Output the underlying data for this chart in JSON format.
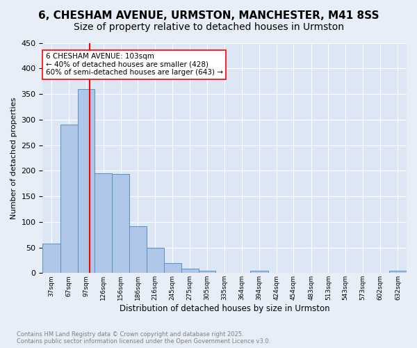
{
  "title1": "6, CHESHAM AVENUE, URMSTON, MANCHESTER, M41 8SS",
  "title2": "Size of property relative to detached houses in Urmston",
  "xlabel": "Distribution of detached houses by size in Urmston",
  "ylabel": "Number of detached properties",
  "bar_values": [
    57,
    290,
    360,
    195,
    193,
    92,
    49,
    20,
    9,
    4,
    0,
    0,
    4,
    0,
    0,
    0,
    0,
    0,
    0,
    0,
    4
  ],
  "bar_labels": [
    "37sqm",
    "67sqm",
    "97sqm",
    "126sqm",
    "156sqm",
    "186sqm",
    "216sqm",
    "245sqm",
    "275sqm",
    "305sqm",
    "335sqm",
    "364sqm",
    "394sqm",
    "424sqm",
    "454sqm",
    "483sqm",
    "513sqm",
    "543sqm",
    "573sqm",
    "602sqm",
    "632sqm"
  ],
  "bin_edges": [
    22,
    52,
    82,
    111,
    141,
    171,
    200,
    230,
    260,
    290,
    319,
    349,
    379,
    409,
    438,
    468,
    498,
    527,
    557,
    587,
    617,
    647
  ],
  "bar_color": "#aec6e8",
  "bar_edge_color": "#5a8fc0",
  "vline_x": 103,
  "vline_color": "red",
  "annotation_text": "6 CHESHAM AVENUE: 103sqm\n← 40% of detached houses are smaller (428)\n60% of semi-detached houses are larger (643) →",
  "annotation_box_color": "white",
  "annotation_border_color": "red",
  "ylim": [
    0,
    450
  ],
  "yticks": [
    0,
    50,
    100,
    150,
    200,
    250,
    300,
    350,
    400,
    450
  ],
  "bg_color": "#e8eef7",
  "plot_bg_color": "#dce6f5",
  "footer": "Contains HM Land Registry data © Crown copyright and database right 2025.\nContains public sector information licensed under the Open Government Licence v3.0.",
  "title_fontsize": 11,
  "subtitle_fontsize": 10
}
